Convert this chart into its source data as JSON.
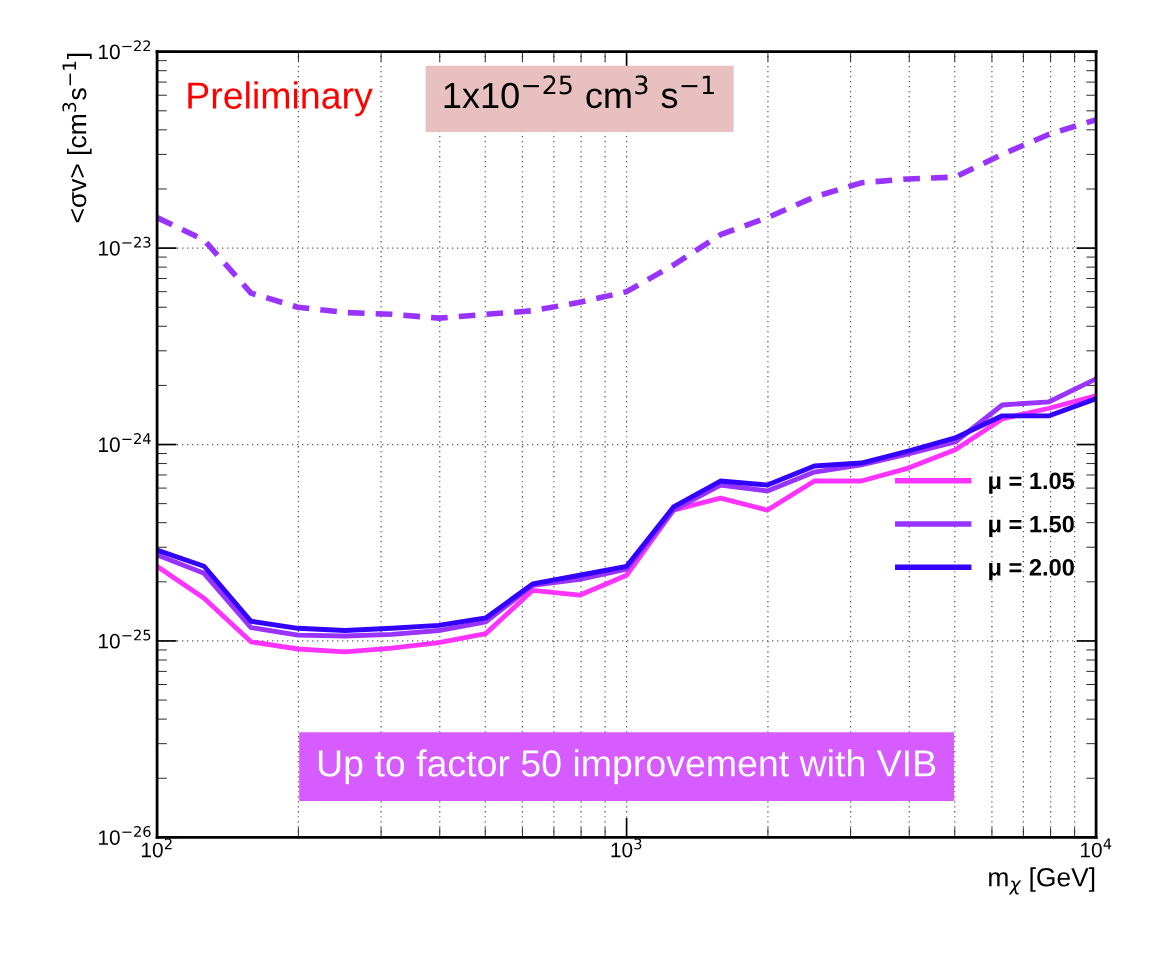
{
  "chart_data": {
    "type": "line",
    "xlabel": "m$_{χ}$ [GeV]",
    "ylabel": "<σv> [cm$^{3}$s$^{−1}$]",
    "log": "xy",
    "x": [
      100,
      125.9,
      158.5,
      199.5,
      251.2,
      316.2,
      398.1,
      501.2,
      631,
      794.3,
      1000,
      1259,
      1585,
      1995,
      2512,
      3162,
      3981,
      5012,
      6310,
      7943,
      10000
    ],
    "series": [
      {
        "name": "μ = 1.05",
        "color": "#ff33ff",
        "line_style": "solid",
        "values": [
          2.4e-25,
          1.65e-25,
          9.9e-26,
          9.1e-26,
          8.8e-26,
          9.2e-26,
          9.8e-26,
          1.09e-25,
          1.81e-25,
          1.71e-25,
          2.16e-25,
          4.64e-25,
          5.33e-25,
          4.64e-25,
          6.52e-25,
          6.52e-25,
          7.59e-25,
          9.4e-25,
          1.35e-24,
          1.53e-24,
          1.77e-24
        ]
      },
      {
        "name": "μ = 1.50",
        "color": "#9933ff",
        "line_style": "solid",
        "values": [
          2.74e-25,
          2.21e-25,
          1.17e-25,
          1.07e-25,
          1.06e-25,
          1.08e-25,
          1.13e-25,
          1.25e-25,
          1.92e-25,
          2.06e-25,
          2.32e-25,
          4.64e-25,
          6.22e-25,
          5.8e-25,
          7.24e-25,
          7.87e-25,
          8.95e-25,
          1.03e-24,
          1.59e-24,
          1.65e-24,
          2.16e-24
        ]
      },
      {
        "name": "μ = 2.00",
        "color": "#3300ff",
        "line_style": "solid",
        "values": [
          2.9e-25,
          2.4e-25,
          1.26e-25,
          1.16e-25,
          1.13e-25,
          1.16e-25,
          1.2e-25,
          1.31e-25,
          1.95e-25,
          2.16e-25,
          2.4e-25,
          4.81e-25,
          6.52e-25,
          6.22e-25,
          7.77e-25,
          8.05e-25,
          9.27e-25,
          1.08e-24,
          1.4e-24,
          1.4e-24,
          1.71e-24
        ]
      },
      {
        "color": "#9933ff",
        "line_style": "dashed",
        "values": [
          1.43e-23,
          1.1e-23,
          5.9e-24,
          5e-24,
          4.7e-24,
          4.6e-24,
          4.4e-24,
          4.6e-24,
          4.8e-24,
          5.3e-24,
          6e-24,
          8.2e-24,
          1.17e-23,
          1.43e-23,
          1.82e-23,
          2.15e-23,
          2.25e-23,
          2.3e-23,
          3e-23,
          3.8e-23,
          4.5e-23
        ]
      }
    ],
    "xlim": [
      100,
      10000
    ],
    "ylim": [
      1e-26,
      1e-22
    ],
    "xticks": [
      {
        "value": 100,
        "label": "10$^{2}$"
      },
      {
        "value": 1000,
        "label": "10$^{3}$"
      },
      {
        "value": 10000,
        "label": "10$^{4}$"
      }
    ],
    "yticks": [
      {
        "value": 1e-26,
        "label": "10$^{−26}$"
      },
      {
        "value": 1e-25,
        "label": "10$^{−25}$"
      },
      {
        "value": 1e-24,
        "label": "10$^{−24}$"
      },
      {
        "value": 1e-23,
        "label": "10$^{−23}$"
      },
      {
        "value": 1e-22,
        "label": "10$^{−22}$"
      }
    ],
    "grid": true,
    "legend": "bottom right",
    "annotations": [
      "Preliminary",
      "1x10$^{−25}$ cm$^{3}$ s$^{−1}$",
      "Up to factor 50 improvement with VIB"
    ]
  }
}
